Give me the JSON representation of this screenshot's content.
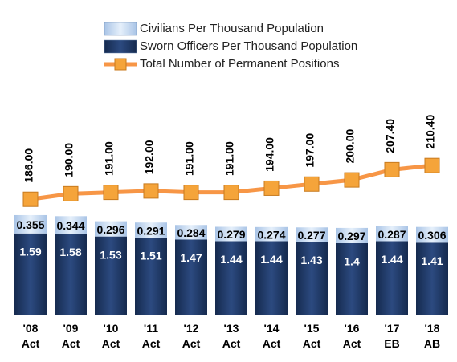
{
  "chart_data": {
    "type": "bar",
    "categories": [
      "'08 Act",
      "'09 Act",
      "'10 Act",
      "'11 Act",
      "'12 Act",
      "'13 Act",
      "'14 Act",
      "'15 Act",
      "'16 Act",
      "'17 EB",
      "'18 AB"
    ],
    "stacked": true,
    "ylim": [
      0,
      3.78
    ],
    "y2lim": [
      102,
      243
    ],
    "series": [
      {
        "name": "Civilians Per Thousand Population",
        "color": "#c6d9f0",
        "values": [
          0.355,
          0.344,
          0.296,
          0.291,
          0.284,
          0.279,
          0.274,
          0.277,
          0.297,
          0.287,
          0.306
        ]
      },
      {
        "name": "Sworn Officers Per Thousand Population",
        "color": "#1f3a68",
        "values": [
          1.59,
          1.58,
          1.53,
          1.51,
          1.47,
          1.44,
          1.44,
          1.43,
          1.4,
          1.44,
          1.41
        ]
      },
      {
        "name": "Total Number of Permanent Positions",
        "type": "line",
        "axis": "y2",
        "color": "#f79646",
        "marker_color": "#f5a43a",
        "values": [
          186,
          190,
          191,
          192,
          191,
          191,
          194,
          197,
          200,
          207.4,
          210.4
        ],
        "value_labels": [
          "186.00",
          "190.00",
          "191.00",
          "192.00",
          "191.00",
          "191.00",
          "194.00",
          "197.00",
          "200.00",
          "207.40",
          "210.40"
        ]
      }
    ]
  }
}
